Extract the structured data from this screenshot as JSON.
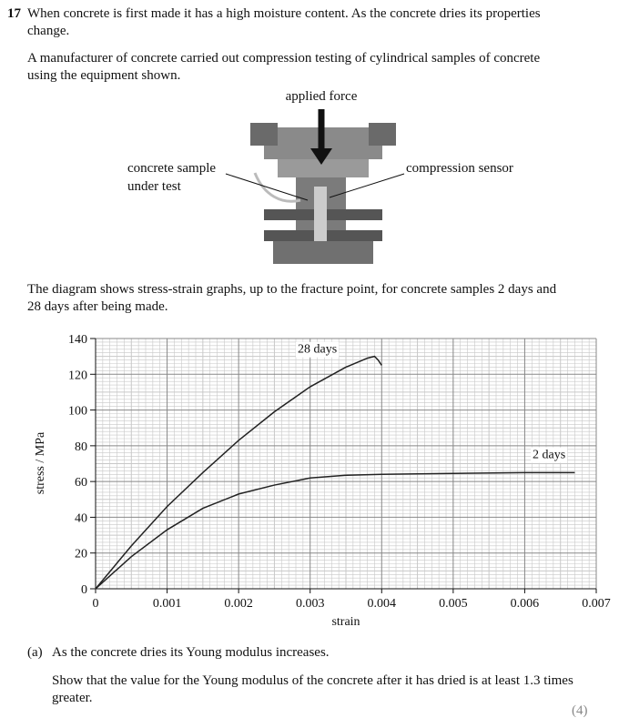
{
  "question": {
    "number": "17",
    "paragraphs": [
      "When concrete is first made it has a high moisture content. As the concrete dries its properties change.",
      "A manufacturer of concrete carried out compression testing of cylindrical samples of concrete using the equipment shown."
    ]
  },
  "figure": {
    "applied_force": "applied force",
    "sample_label": [
      "concrete sample",
      "under test"
    ],
    "sensor_label": "compression sensor"
  },
  "chart_intro": "The diagram shows stress-strain graphs, up to the fracture point, for concrete samples 2 days and 28 days after being made.",
  "chart_data": {
    "type": "line",
    "x_label": "strain",
    "y_label": "stress / MPa",
    "xlim": [
      0,
      0.007
    ],
    "xticks": [
      0,
      0.001,
      0.002,
      0.003,
      0.004,
      0.005,
      0.006,
      0.007
    ],
    "ylim": [
      0,
      140
    ],
    "yticks": [
      0,
      20,
      40,
      60,
      80,
      100,
      120,
      140
    ],
    "grid": true,
    "series": [
      {
        "name": "28 days",
        "color": "#222222",
        "x": [
          0,
          0.0005,
          0.001,
          0.0015,
          0.002,
          0.0025,
          0.003,
          0.0035,
          0.0038,
          0.0039,
          0.00395,
          0.004
        ],
        "values": [
          0,
          24,
          46,
          65,
          83,
          99,
          113,
          124,
          129,
          130,
          128,
          125
        ]
      },
      {
        "name": "2 days",
        "color": "#222222",
        "x": [
          0,
          0.0005,
          0.001,
          0.0015,
          0.002,
          0.0025,
          0.003,
          0.0035,
          0.004,
          0.005,
          0.006,
          0.0067
        ],
        "values": [
          0,
          18,
          33,
          45,
          53,
          58,
          62,
          63.5,
          64,
          64.5,
          65,
          65
        ]
      }
    ]
  },
  "part_a": {
    "label": "(a)",
    "statement": "As the concrete dries its Young modulus increases.",
    "instruction": "Show that the value for the Young modulus of the concrete after it has dried is at least 1.3 times greater.",
    "marks": "(4)"
  }
}
